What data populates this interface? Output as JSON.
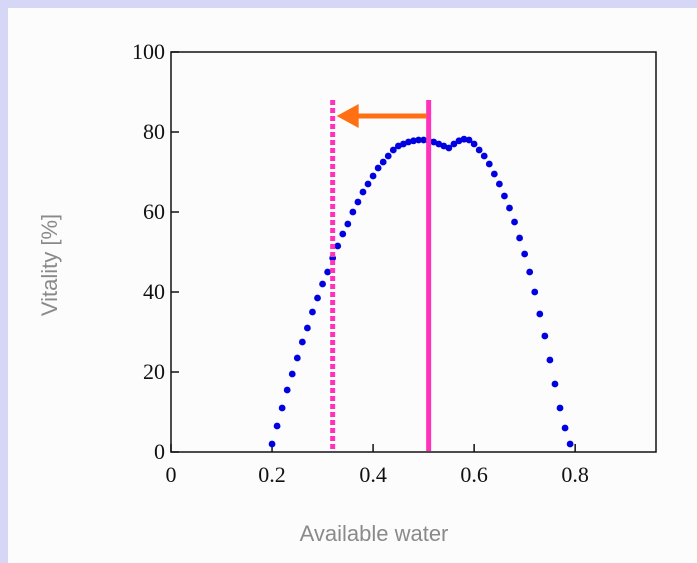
{
  "chart_data": {
    "type": "scatter",
    "xlabel": "Available water",
    "ylabel": "Vitality [%]",
    "xlim": [
      0,
      0.96
    ],
    "ylim": [
      0,
      100
    ],
    "x_ticks": [
      "0",
      "0.2",
      "0.4",
      "0.6",
      "0.8"
    ],
    "y_ticks": [
      "0",
      "20",
      "40",
      "60",
      "80",
      "100"
    ],
    "grid": false,
    "colors": {
      "points": "#0000e0",
      "current_line": "#ff33bb",
      "shifted_line": "#ff33bb",
      "arrow": "#ff7014"
    },
    "series": [
      {
        "x": [
          0.2,
          0.21,
          0.22,
          0.23,
          0.24,
          0.25,
          0.26,
          0.27,
          0.28,
          0.29,
          0.3,
          0.31,
          0.32,
          0.33,
          0.34,
          0.35,
          0.36,
          0.37,
          0.38,
          0.39,
          0.4,
          0.41,
          0.42,
          0.43,
          0.44,
          0.45,
          0.46,
          0.47,
          0.48,
          0.49,
          0.5,
          0.51,
          0.52,
          0.53,
          0.54,
          0.55,
          0.56,
          0.57,
          0.58,
          0.59,
          0.6,
          0.61,
          0.62,
          0.63,
          0.64,
          0.65,
          0.66,
          0.67,
          0.68,
          0.69,
          0.7,
          0.71,
          0.72,
          0.73,
          0.74,
          0.75,
          0.76,
          0.77,
          0.78,
          0.79
        ],
        "y": [
          2,
          6.5,
          11,
          15.5,
          19.5,
          23.5,
          27.5,
          31,
          35,
          38.5,
          42,
          45,
          48.5,
          51.5,
          54.5,
          57,
          60,
          62.5,
          65,
          67,
          69,
          71,
          72.5,
          74,
          75.5,
          76.5,
          77,
          77.5,
          77.8,
          78,
          78,
          77.8,
          77.5,
          77,
          76.5,
          76,
          77,
          77.8,
          78.2,
          78,
          77,
          75.5,
          74,
          72,
          69.5,
          67,
          64,
          61,
          57.5,
          53.5,
          49.5,
          45,
          40,
          34.5,
          29,
          23,
          17,
          11,
          6,
          2
        ]
      }
    ],
    "vertical_lines": [
      {
        "x": 0.51,
        "style": "solid"
      },
      {
        "x": 0.32,
        "style": "dotted"
      }
    ],
    "arrow": {
      "from_x": 0.51,
      "to_x": 0.32,
      "y": 84
    }
  }
}
